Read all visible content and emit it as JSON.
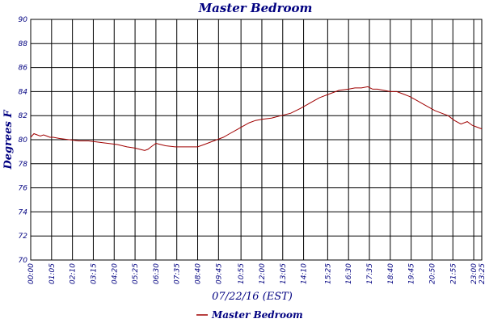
{
  "chart_data": {
    "type": "line",
    "title": "Master Bedroom",
    "xlabel": "07/22/16 (EST)",
    "ylabel": "Degrees F",
    "ylim": [
      70,
      90
    ],
    "yticks": [
      70,
      72,
      74,
      76,
      78,
      80,
      82,
      84,
      86,
      88,
      90
    ],
    "xlim_minutes": [
      0,
      1405
    ],
    "xtick_labels": [
      "00:00",
      "01:05",
      "02:10",
      "03:15",
      "04:20",
      "05:25",
      "06:30",
      "07:35",
      "08:40",
      "09:45",
      "10:55",
      "12:00",
      "13:05",
      "14:10",
      "15:25",
      "16:30",
      "17:35",
      "18:40",
      "19:45",
      "20:50",
      "21:55",
      "23:00",
      "23:25"
    ],
    "xtick_minutes": [
      0,
      65,
      130,
      195,
      260,
      325,
      390,
      455,
      520,
      585,
      655,
      720,
      785,
      850,
      925,
      990,
      1055,
      1120,
      1185,
      1250,
      1315,
      1380,
      1405
    ],
    "grid": true,
    "legend_position": "bottom",
    "series": [
      {
        "name": "Master Bedroom",
        "color": "#a00000",
        "x": [
          "00:00",
          "00:10",
          "00:20",
          "00:30",
          "00:40",
          "00:50",
          "01:00",
          "01:10",
          "01:30",
          "02:00",
          "02:30",
          "03:00",
          "03:30",
          "04:00",
          "04:30",
          "05:00",
          "05:25",
          "05:40",
          "05:55",
          "06:05",
          "06:15",
          "06:30",
          "06:45",
          "07:00",
          "07:30",
          "08:00",
          "08:40",
          "09:00",
          "09:20",
          "09:40",
          "10:00",
          "10:20",
          "10:40",
          "11:00",
          "11:20",
          "11:40",
          "12:00",
          "12:30",
          "13:00",
          "13:30",
          "14:00",
          "14:20",
          "14:40",
          "15:00",
          "15:30",
          "16:00",
          "16:30",
          "16:50",
          "17:10",
          "17:30",
          "17:45",
          "18:00",
          "18:20",
          "18:40",
          "19:00",
          "19:20",
          "19:40",
          "20:00",
          "20:20",
          "20:40",
          "21:00",
          "21:20",
          "21:40",
          "22:00",
          "22:20",
          "22:40",
          "22:55",
          "23:05",
          "23:15",
          "23:25"
        ],
        "values": [
          80.2,
          80.5,
          80.4,
          80.3,
          80.4,
          80.3,
          80.2,
          80.2,
          80.1,
          80.0,
          79.9,
          79.9,
          79.8,
          79.7,
          79.6,
          79.4,
          79.3,
          79.2,
          79.1,
          79.2,
          79.4,
          79.7,
          79.6,
          79.5,
          79.4,
          79.4,
          79.4,
          79.6,
          79.8,
          80.0,
          80.2,
          80.5,
          80.8,
          81.1,
          81.4,
          81.6,
          81.7,
          81.8,
          82.0,
          82.2,
          82.6,
          82.9,
          83.2,
          83.5,
          83.8,
          84.1,
          84.2,
          84.3,
          84.3,
          84.4,
          84.2,
          84.2,
          84.1,
          84.0,
          84.0,
          83.8,
          83.6,
          83.3,
          83.0,
          82.7,
          82.4,
          82.2,
          82.0,
          81.6,
          81.3,
          81.5,
          81.2,
          81.1,
          81.0,
          80.9
        ]
      }
    ]
  }
}
